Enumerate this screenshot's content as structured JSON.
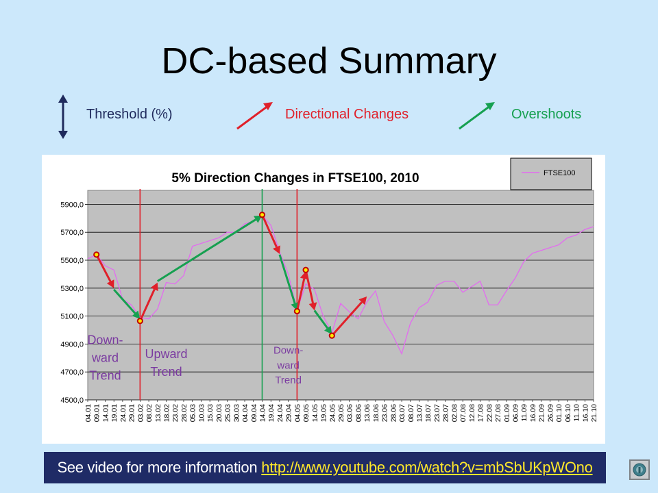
{
  "slide": {
    "title": "DC-based Summary",
    "legend": {
      "threshold_label": "Threshold (%)",
      "dc_label": "Directional Changes",
      "overshoot_label": "Overshoots"
    },
    "footer": {
      "text": "See video for more information",
      "link_text": "http://www.youtube.com/watch?v=mbSbUKpWOno"
    },
    "colors": {
      "dc_arrow": "#e0202a",
      "overshoot_arrow": "#16a050",
      "threshold_arrow": "#1f2a5c",
      "price_line": "#e36bf0",
      "trend_text": "#7a3aa0"
    }
  },
  "chart_data": {
    "type": "line",
    "title": "5% Direction Changes in FTSE100, 2010",
    "xlabel": "",
    "ylabel": "",
    "ylim": [
      4500,
      6000
    ],
    "yticks": [
      4500,
      4700,
      4900,
      5100,
      5300,
      5500,
      5700,
      5900
    ],
    "ytick_labels": [
      "4500,0",
      "4700,0",
      "4900,0",
      "5100,0",
      "5300,0",
      "5500,0",
      "5700,0",
      "5900,0"
    ],
    "grid": true,
    "legend": "top-right",
    "categories": [
      "04.01",
      "09.01",
      "14.01",
      "19.01",
      "24.01",
      "29.01",
      "03.02",
      "08.02",
      "13.02",
      "18.02",
      "23.02",
      "28.02",
      "05.03",
      "10.03",
      "15.03",
      "20.03",
      "25.03",
      "30.03",
      "04.04",
      "09.04",
      "14.04",
      "19.04",
      "24.04",
      "29.04",
      "04.05",
      "09.05",
      "14.05",
      "19.05",
      "24.05",
      "29.05",
      "03.06",
      "08.06",
      "13.06",
      "18.06",
      "23.06",
      "28.06",
      "03.07",
      "08.07",
      "13.07",
      "18.07",
      "23.07",
      "28.07",
      "02.08",
      "07.08",
      "12.08",
      "17.08",
      "22.08",
      "27.08",
      "01.09",
      "06.09",
      "11.09",
      "16.09",
      "21.09",
      "26.09",
      "01.10",
      "06.10",
      "11.10",
      "16.10",
      "21.10"
    ],
    "series": [
      {
        "name": "FTSE100",
        "values": [
          5510,
          5540,
          5460,
          5430,
          5220,
          5180,
          5090,
          5080,
          5150,
          5340,
          5330,
          5390,
          5600,
          5620,
          5640,
          5660,
          5700,
          5700,
          5760,
          5780,
          5820,
          5750,
          5560,
          5400,
          5140,
          5330,
          5290,
          5100,
          4980,
          5190,
          5130,
          5080,
          5200,
          5280,
          5060,
          4960,
          4830,
          5050,
          5160,
          5200,
          5320,
          5350,
          5350,
          5270,
          5310,
          5350,
          5180,
          5180,
          5280,
          5370,
          5490,
          5550,
          5570,
          5590,
          5610,
          5660,
          5680,
          5720,
          5740
        ]
      }
    ],
    "dc_points": [
      {
        "x": "09.01",
        "y": 5540
      },
      {
        "x": "03.02",
        "y": 5065
      },
      {
        "x": "14.04",
        "y": 5825
      },
      {
        "x": "04.05",
        "y": 5135
      },
      {
        "x": "09.05",
        "y": 5430
      },
      {
        "x": "24.05",
        "y": 4960
      }
    ],
    "dc_arrows": [
      {
        "from": {
          "x": "09.01",
          "y": 5540
        },
        "to": {
          "x": "19.01",
          "y": 5300
        }
      },
      {
        "from": {
          "x": "03.02",
          "y": 5065
        },
        "to": {
          "x": "13.02",
          "y": 5340
        }
      },
      {
        "from": {
          "x": "14.04",
          "y": 5825
        },
        "to": {
          "x": "24.04",
          "y": 5545
        }
      },
      {
        "from": {
          "x": "04.05",
          "y": 5135
        },
        "to": {
          "x": "09.05",
          "y": 5420
        }
      },
      {
        "from": {
          "x": "09.05",
          "y": 5430
        },
        "to": {
          "x": "14.05",
          "y": 5140
        }
      },
      {
        "from": {
          "x": "24.05",
          "y": 4960
        },
        "to": {
          "x": "13.06",
          "y": 5240
        }
      }
    ],
    "overshoot_arrows": [
      {
        "from": {
          "x": "19.01",
          "y": 5290
        },
        "to": {
          "x": "03.02",
          "y": 5080
        }
      },
      {
        "from": {
          "x": "13.02",
          "y": 5350
        },
        "to": {
          "x": "14.04",
          "y": 5820
        }
      },
      {
        "from": {
          "x": "24.04",
          "y": 5540
        },
        "to": {
          "x": "04.05",
          "y": 5140
        }
      },
      {
        "from": {
          "x": "14.05",
          "y": 5140
        },
        "to": {
          "x": "24.05",
          "y": 4970
        }
      }
    ],
    "trend_dividers": [
      {
        "x": "03.02",
        "color": "#e0202a"
      },
      {
        "x": "14.04",
        "color": "#16a050"
      },
      {
        "x": "04.05",
        "color": "#e0202a"
      }
    ],
    "trend_labels": [
      {
        "lines": [
          "Down-",
          "ward",
          "Trend"
        ],
        "x": "14.01",
        "y": 4900,
        "size": 18
      },
      {
        "lines": [
          "Upward",
          "Trend"
        ],
        "x": "18.02",
        "y": 4800,
        "size": 18
      },
      {
        "lines": [
          "Down-",
          "ward",
          "Trend"
        ],
        "x": "29.04",
        "y": 4830,
        "size": 15
      }
    ]
  }
}
